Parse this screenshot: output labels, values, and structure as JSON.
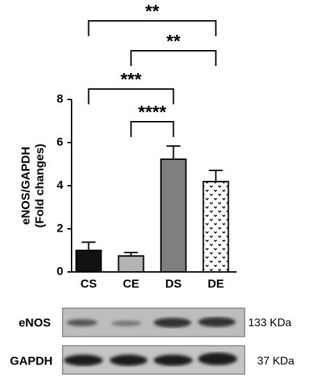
{
  "chart_data": {
    "type": "bar",
    "ylabel": [
      "eNOS/GAPDH",
      "(Fold changes)"
    ],
    "categories": [
      "CS",
      "CE",
      "DS",
      "DE"
    ],
    "values": [
      1.0,
      0.74,
      5.23,
      4.19
    ],
    "errors": [
      0.38,
      0.16,
      0.61,
      0.52
    ],
    "colors": [
      "#111111",
      "#b3b3b3",
      "#7f7f7f",
      "#ffffff"
    ],
    "hatches": [
      null,
      null,
      null,
      "dots"
    ],
    "ylim": [
      0,
      8
    ],
    "yticks": [
      0,
      2,
      4,
      6,
      8
    ],
    "grid": false,
    "annotations": [
      {
        "from": "CS",
        "to": "DE",
        "label": "**"
      },
      {
        "from": "CE",
        "to": "DE",
        "label": "**"
      },
      {
        "from": "CS",
        "to": "DS",
        "label": "***"
      },
      {
        "from": "CE",
        "to": "DS",
        "label": "****"
      }
    ]
  },
  "blot": {
    "rows": [
      {
        "label": "eNOS",
        "size": "133 KDa"
      },
      {
        "label": "GAPDH",
        "size": "37 KDa"
      }
    ]
  }
}
